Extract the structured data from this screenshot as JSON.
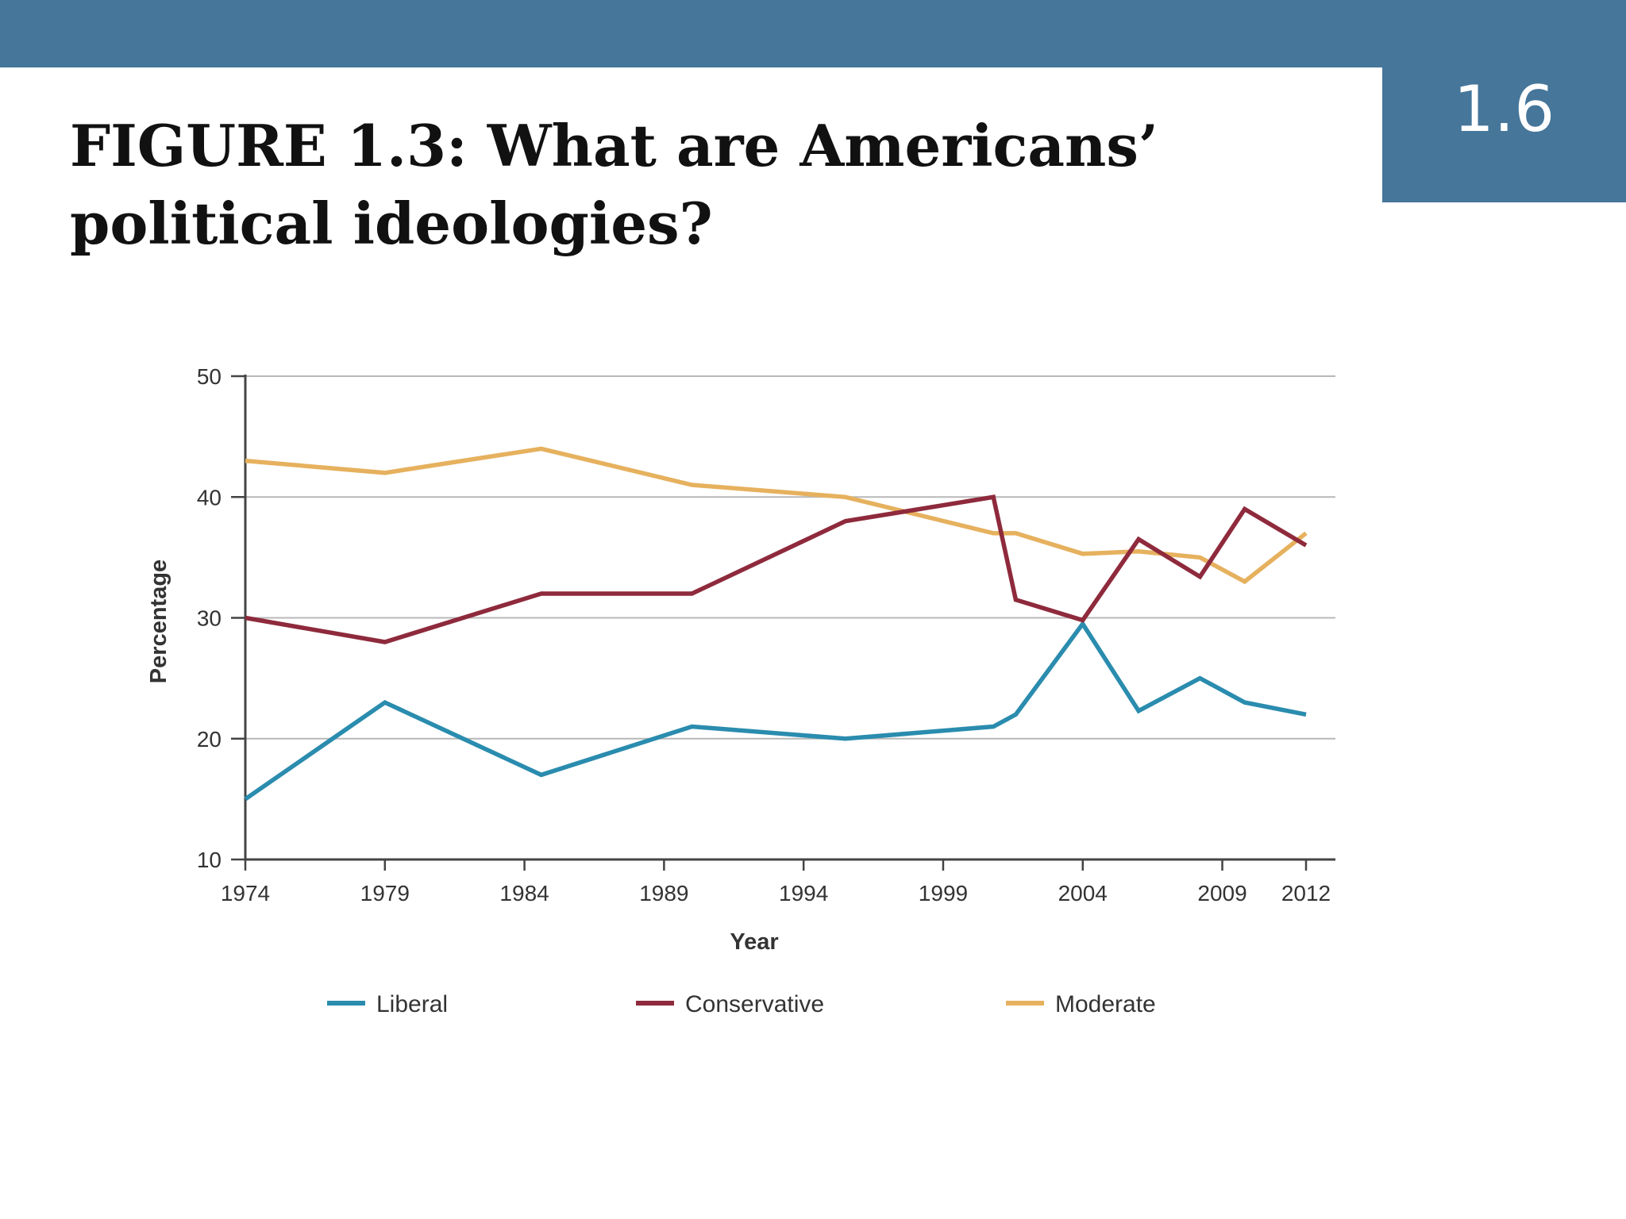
{
  "slide": {
    "section_number": "1.6",
    "title_line1": "FIGURE 1.3: What are Americans’",
    "title_line2": "political ideologies?",
    "bar_color": "#46769a"
  },
  "chart_data": {
    "type": "line",
    "xlabel": "Year",
    "ylabel": "Percentage",
    "xlim": [
      1974,
      2012
    ],
    "ylim": [
      10,
      50
    ],
    "x_ticks": [
      1974,
      1979,
      1984,
      1989,
      1994,
      1999,
      2004,
      2009,
      2012
    ],
    "y_ticks": [
      10,
      20,
      30,
      40,
      50
    ],
    "grid": "horizontal",
    "legend_position": "bottom",
    "series": [
      {
        "name": "Liberal",
        "color": "#2a8cae",
        "points": [
          [
            1974,
            15
          ],
          [
            1979,
            23
          ],
          [
            1984.6,
            17
          ],
          [
            1990,
            21
          ],
          [
            1995.5,
            20
          ],
          [
            2000.8,
            21
          ],
          [
            2001.6,
            22
          ],
          [
            2004,
            29.5
          ],
          [
            2006,
            22.3
          ],
          [
            2008.2,
            25
          ],
          [
            2009.8,
            23
          ],
          [
            2012,
            22
          ]
        ]
      },
      {
        "name": "Conservative",
        "color": "#8e2a3c",
        "points": [
          [
            1974,
            30
          ],
          [
            1979,
            28
          ],
          [
            1984.6,
            32
          ],
          [
            1990,
            32
          ],
          [
            1995.5,
            38
          ],
          [
            2000.8,
            40
          ],
          [
            2001.6,
            31.5
          ],
          [
            2004,
            29.8
          ],
          [
            2006,
            36.5
          ],
          [
            2008.2,
            33.4
          ],
          [
            2009.8,
            39
          ],
          [
            2012,
            36
          ]
        ]
      },
      {
        "name": "Moderate",
        "color": "#e6b15e",
        "points": [
          [
            1974,
            43
          ],
          [
            1979,
            42
          ],
          [
            1984.6,
            44
          ],
          [
            1990,
            41
          ],
          [
            1995.5,
            40
          ],
          [
            2000.8,
            37
          ],
          [
            2001.6,
            37
          ],
          [
            2004,
            35.3
          ],
          [
            2006,
            35.5
          ],
          [
            2008.2,
            35
          ],
          [
            2009.8,
            33
          ],
          [
            2012,
            37
          ]
        ]
      }
    ]
  }
}
